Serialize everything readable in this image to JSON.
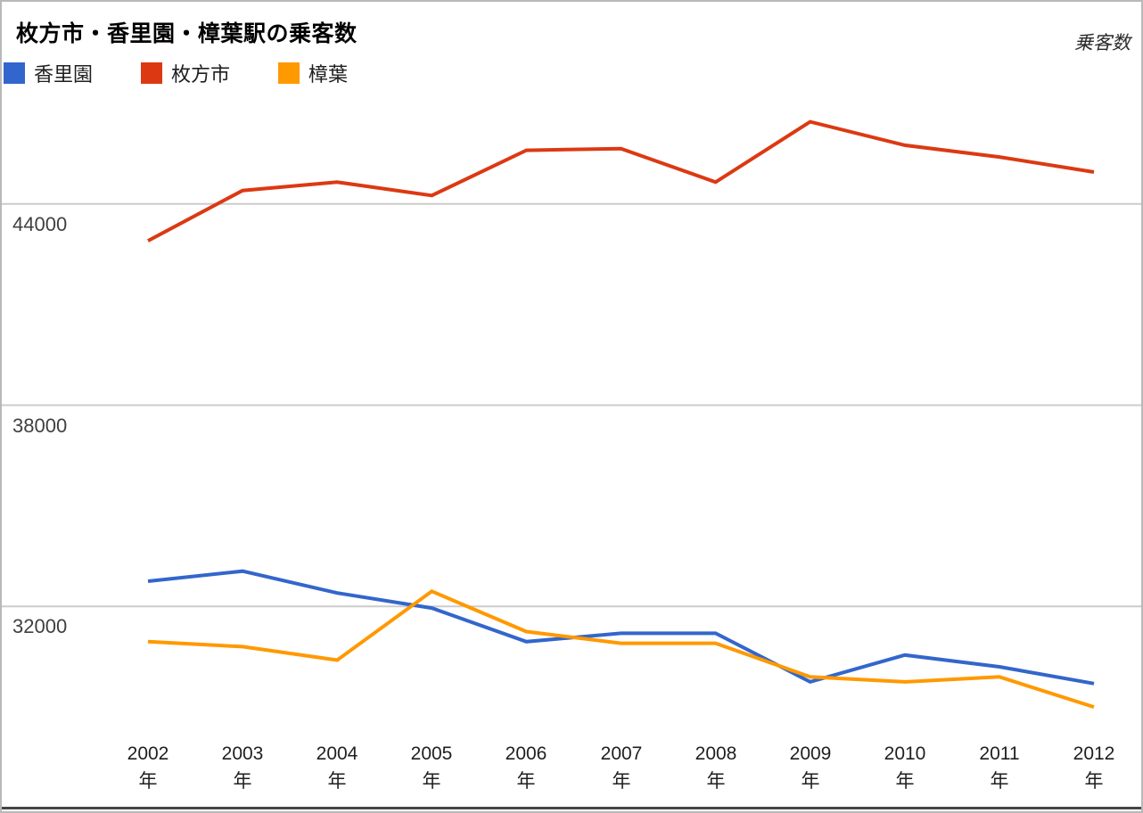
{
  "header": {
    "title": "枚方市・香里園・樟葉駅の乗客数",
    "axis_title": "乗客数"
  },
  "legend": {
    "items": [
      {
        "label": "香里園",
        "color": "#3366CC"
      },
      {
        "label": "枚方市",
        "color": "#DC3912"
      },
      {
        "label": "樟葉",
        "color": "#FF9900"
      }
    ]
  },
  "axes": {
    "y_tick_labels": [
      "44000",
      "38000",
      "32000"
    ],
    "x_tick_suffix": "年"
  },
  "chart_data": {
    "type": "line",
    "title": "枚方市・香里園・樟葉駅の乗客数",
    "ylabel": "乗客数",
    "categories": [
      "2002年",
      "2003年",
      "2004年",
      "2005年",
      "2006年",
      "2007年",
      "2008年",
      "2009年",
      "2010年",
      "2011年",
      "2012年"
    ],
    "x_tick_line1": [
      "2002",
      "2003",
      "2004",
      "2005",
      "2006",
      "2007",
      "2008",
      "2009",
      "2010",
      "2011",
      "2012"
    ],
    "x_tick_line2": "年",
    "ylim": [
      26000,
      50000
    ],
    "gridline_values": [
      44000,
      38000,
      32000
    ],
    "grid": true,
    "legend_position": "top-left",
    "series": [
      {
        "name": "香里園",
        "color": "#3366CC",
        "values": [
          32750,
          33050,
          32400,
          31950,
          30950,
          31200,
          31200,
          29750,
          30550,
          30200,
          29700
        ]
      },
      {
        "name": "枚方市",
        "color": "#DC3912",
        "values": [
          42900,
          44400,
          44650,
          44250,
          45600,
          45650,
          44650,
          46450,
          45750,
          45400,
          44950
        ]
      },
      {
        "name": "樟葉",
        "color": "#FF9900",
        "values": [
          30950,
          30800,
          30400,
          32450,
          31250,
          30900,
          30900,
          29900,
          29750,
          29900,
          29000
        ]
      }
    ]
  }
}
